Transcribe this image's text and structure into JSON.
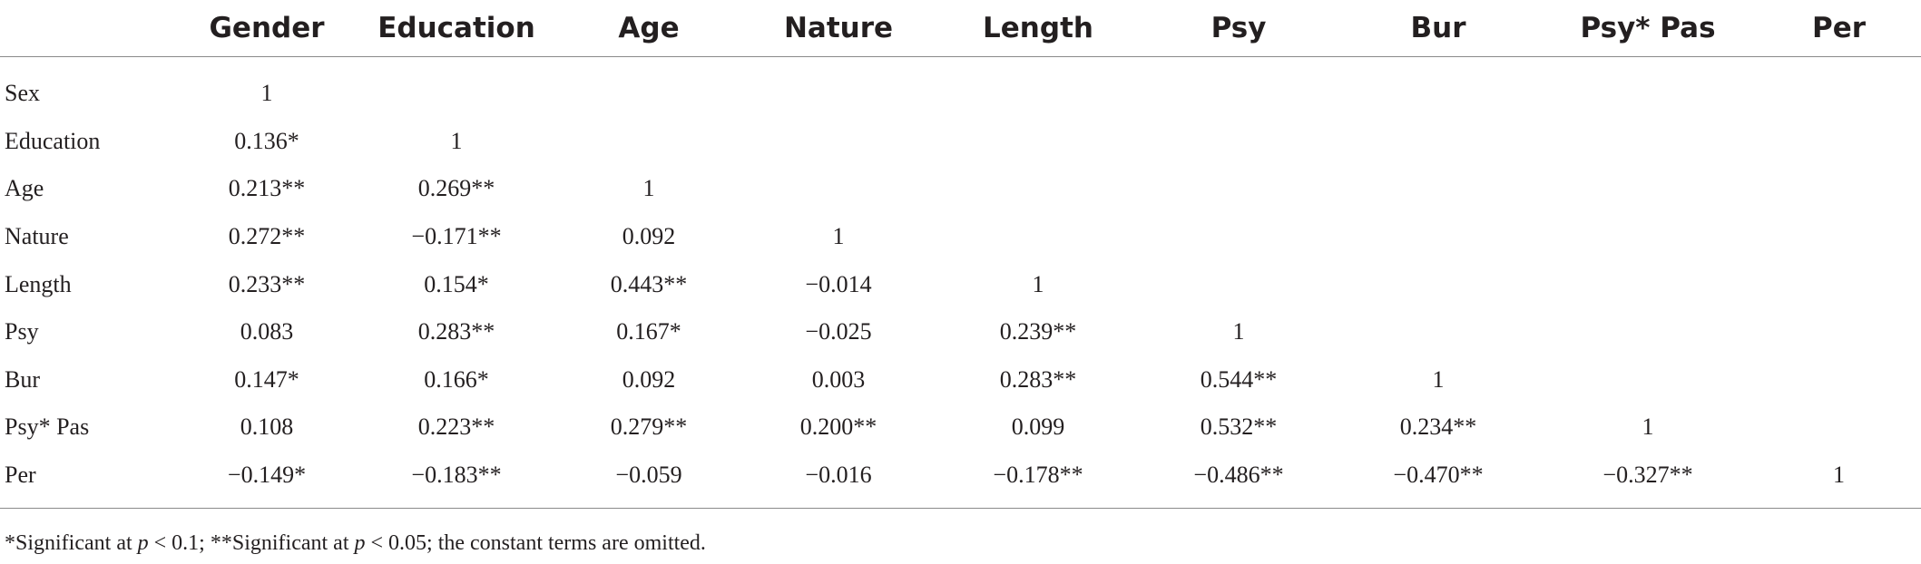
{
  "table": {
    "headers": [
      "",
      "Gender",
      "Education",
      "Age",
      "Nature",
      "Length",
      "Psy",
      "Bur",
      "Psy* Pas",
      "Per"
    ],
    "rows": [
      {
        "label": "Sex",
        "cells": [
          "1",
          "",
          "",
          "",
          "",
          "",
          "",
          "",
          ""
        ]
      },
      {
        "label": "Education",
        "cells": [
          "0.136*",
          "1",
          "",
          "",
          "",
          "",
          "",
          "",
          ""
        ]
      },
      {
        "label": "Age",
        "cells": [
          "0.213**",
          "0.269**",
          "1",
          "",
          "",
          "",
          "",
          "",
          ""
        ]
      },
      {
        "label": "Nature",
        "cells": [
          "0.272**",
          "−0.171**",
          "0.092",
          "1",
          "",
          "",
          "",
          "",
          ""
        ]
      },
      {
        "label": "Length",
        "cells": [
          "0.233**",
          "0.154*",
          "0.443**",
          "−0.014",
          "1",
          "",
          "",
          "",
          ""
        ]
      },
      {
        "label": "Psy",
        "cells": [
          "0.083",
          "0.283**",
          "0.167*",
          "−0.025",
          "0.239**",
          "1",
          "",
          "",
          ""
        ]
      },
      {
        "label": "Bur",
        "cells": [
          "0.147*",
          "0.166*",
          "0.092",
          "0.003",
          "0.283**",
          "0.544**",
          "1",
          "",
          ""
        ]
      },
      {
        "label": "Psy* Pas",
        "cells": [
          "0.108",
          "0.223**",
          "0.279**",
          "0.200**",
          "0.099",
          "0.532**",
          "0.234**",
          "1",
          ""
        ]
      },
      {
        "label": "Per",
        "cells": [
          "−0.149*",
          "−0.183**",
          "−0.059",
          "−0.016",
          "−0.178**",
          "−0.486**",
          "−0.470**",
          "−0.327**",
          "1"
        ]
      }
    ]
  },
  "footnote": {
    "part1": "*Significant at ",
    "p1": "p",
    "part2": " < 0.1; **Significant at ",
    "p2": "p",
    "part3": " < 0.05; the constant terms are omitted."
  }
}
